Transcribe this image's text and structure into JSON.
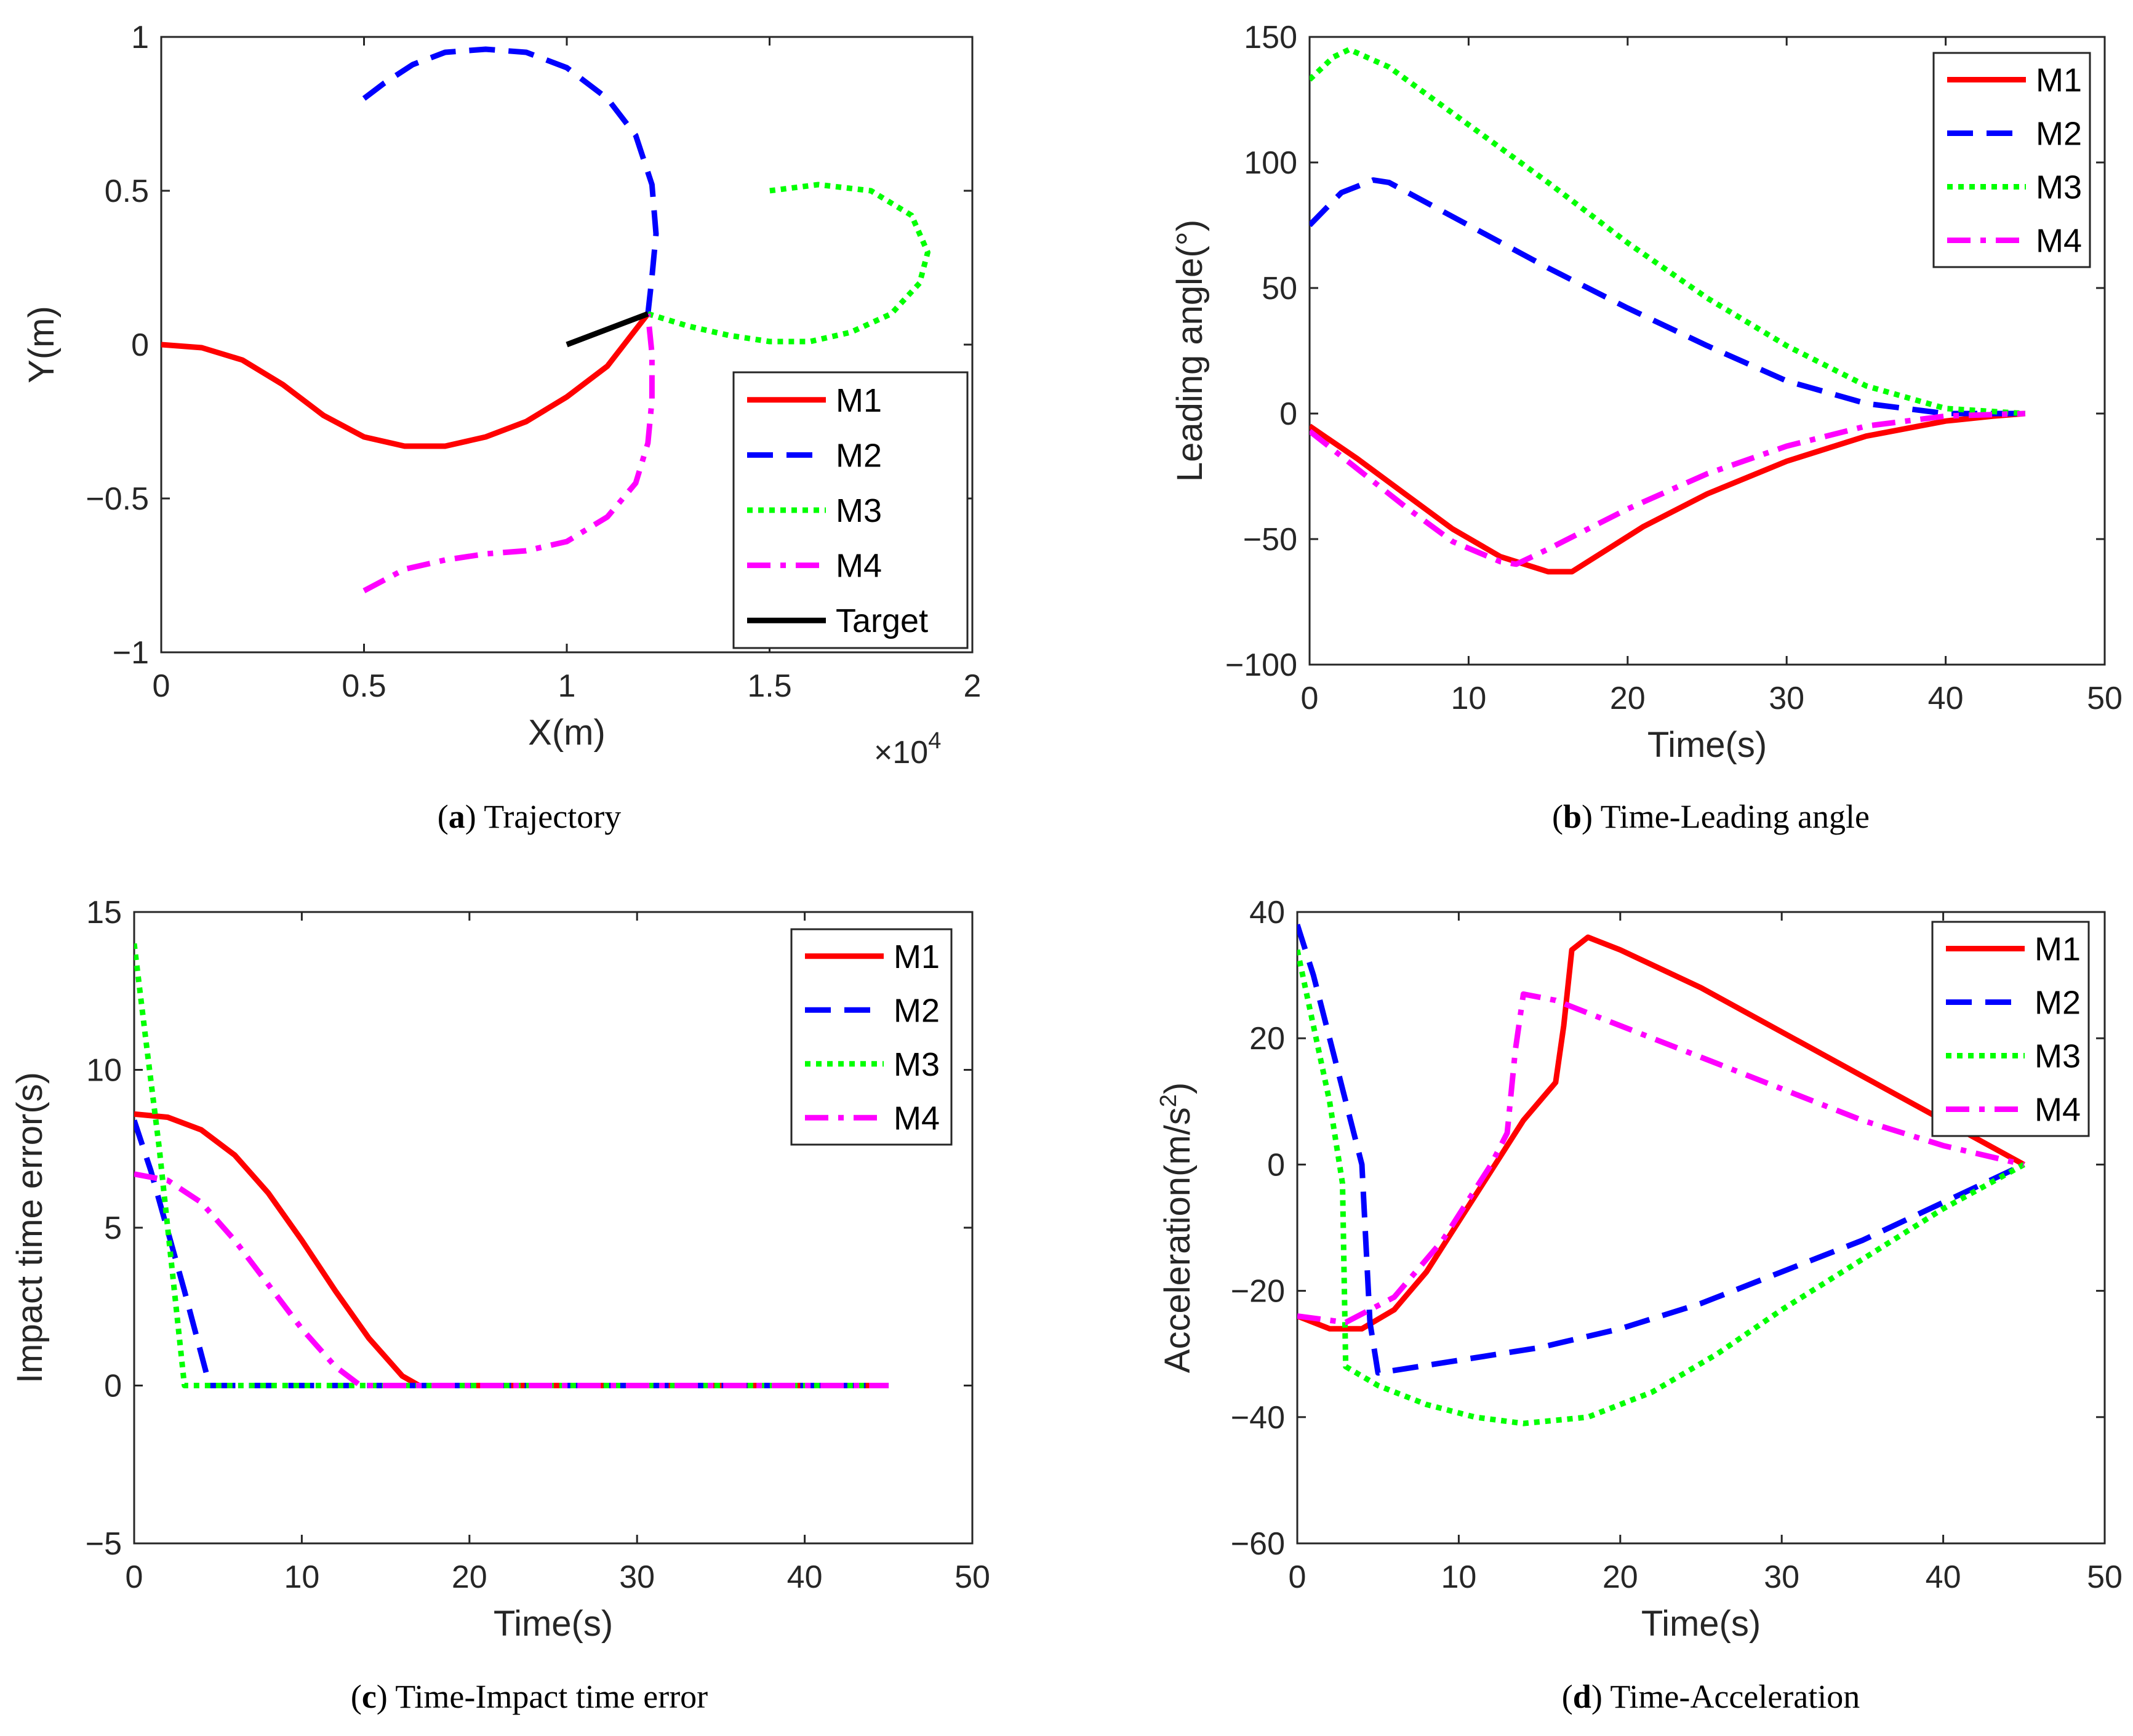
{
  "figure": {
    "background": "#ffffff",
    "axis_color": "#262626"
  },
  "chart_data": [
    {
      "id": "a",
      "type": "line",
      "caption_letter": "a",
      "caption_text": "Trajectory",
      "xlabel": "X(m)",
      "ylabel": "Y(m)",
      "xlim": [
        0,
        2
      ],
      "ylim": [
        -1,
        1
      ],
      "xticks": [
        0,
        0.5,
        1,
        1.5,
        2
      ],
      "xtick_labels": [
        "0",
        "0.5",
        "1",
        "1.5",
        "2"
      ],
      "yticks": [
        -1,
        -0.5,
        0,
        0.5,
        1
      ],
      "ytick_labels": [
        "−1",
        "−0.5",
        "0",
        "0.5",
        "1"
      ],
      "x_exponent_base": "×10",
      "x_exponent_power": "4",
      "grid": false,
      "legend_position": "bottom-right",
      "series": [
        {
          "name": "M1",
          "color": "#ff0000",
          "style": "solid",
          "x": [
            0,
            0.1,
            0.2,
            0.3,
            0.4,
            0.5,
            0.6,
            0.7,
            0.8,
            0.9,
            1.0,
            1.1,
            1.2
          ],
          "y": [
            0,
            -0.01,
            -0.05,
            -0.13,
            -0.23,
            -0.3,
            -0.33,
            -0.33,
            -0.3,
            -0.25,
            -0.17,
            -0.07,
            0.1
          ]
        },
        {
          "name": "M2",
          "color": "#0000ff",
          "style": "dashed",
          "x": [
            0.5,
            0.55,
            0.62,
            0.7,
            0.8,
            0.9,
            1.0,
            1.1,
            1.17,
            1.21,
            1.22,
            1.21,
            1.2
          ],
          "y": [
            0.8,
            0.85,
            0.91,
            0.95,
            0.96,
            0.95,
            0.9,
            0.8,
            0.68,
            0.52,
            0.36,
            0.22,
            0.1
          ]
        },
        {
          "name": "M3",
          "color": "#00ff00",
          "style": "dotted",
          "x": [
            1.2,
            1.3,
            1.4,
            1.5,
            1.6,
            1.7,
            1.8,
            1.87,
            1.89,
            1.85,
            1.75,
            1.62,
            1.5
          ],
          "y": [
            0.1,
            0.06,
            0.03,
            0.01,
            0.01,
            0.04,
            0.1,
            0.2,
            0.3,
            0.42,
            0.5,
            0.52,
            0.5
          ]
        },
        {
          "name": "M4",
          "color": "#ff00ff",
          "style": "dashdot",
          "x": [
            0.5,
            0.6,
            0.7,
            0.8,
            0.9,
            1.0,
            1.1,
            1.17,
            1.2,
            1.21,
            1.21,
            1.2
          ],
          "y": [
            -0.8,
            -0.73,
            -0.7,
            -0.68,
            -0.67,
            -0.64,
            -0.56,
            -0.45,
            -0.32,
            -0.18,
            -0.03,
            0.1
          ]
        },
        {
          "name": "Target",
          "color": "#000000",
          "style": "solid",
          "x": [
            1.0,
            1.2
          ],
          "y": [
            0.0,
            0.1
          ]
        }
      ]
    },
    {
      "id": "b",
      "type": "line",
      "caption_letter": "b",
      "caption_text": "Time-Leading angle",
      "xlabel": "Time(s)",
      "ylabel": "Leading angle(°)",
      "xlim": [
        0,
        50
      ],
      "ylim": [
        -100,
        150
      ],
      "xticks": [
        0,
        10,
        20,
        30,
        40,
        50
      ],
      "xtick_labels": [
        "0",
        "10",
        "20",
        "30",
        "40",
        "50"
      ],
      "yticks": [
        -100,
        -50,
        0,
        50,
        100,
        150
      ],
      "ytick_labels": [
        "−100",
        "−50",
        "0",
        "50",
        "100",
        "150"
      ],
      "grid": false,
      "legend_position": "top-right",
      "series": [
        {
          "name": "M1",
          "color": "#ff0000",
          "style": "solid",
          "x": [
            0,
            3,
            6,
            9,
            12,
            15,
            16.5,
            18,
            21,
            25,
            30,
            35,
            40,
            43,
            45
          ],
          "y": [
            -5,
            -18,
            -32,
            -46,
            -57,
            -63,
            -63,
            -57,
            -45,
            -32,
            -19,
            -9,
            -3,
            -1,
            0
          ]
        },
        {
          "name": "M2",
          "color": "#0000ff",
          "style": "dashed",
          "x": [
            0,
            2,
            4,
            5,
            10,
            15,
            20,
            25,
            30,
            35,
            40,
            45
          ],
          "y": [
            75,
            88,
            93,
            92,
            75,
            58,
            42,
            27,
            13,
            4,
            0,
            0
          ]
        },
        {
          "name": "M3",
          "color": "#00ff00",
          "style": "dotted",
          "x": [
            0,
            1.5,
            2.5,
            5,
            10,
            15,
            20,
            25,
            30,
            35,
            40,
            45
          ],
          "y": [
            133,
            142,
            145,
            138,
            115,
            92,
            68,
            46,
            27,
            11,
            2,
            0
          ]
        },
        {
          "name": "M4",
          "color": "#ff00ff",
          "style": "dashdot",
          "x": [
            0,
            3,
            6,
            9,
            12,
            13,
            15,
            20,
            25,
            30,
            35,
            40,
            45
          ],
          "y": [
            -7,
            -22,
            -37,
            -51,
            -59,
            -60,
            -54,
            -38,
            -24,
            -13,
            -5,
            -1,
            0
          ]
        }
      ]
    },
    {
      "id": "c",
      "type": "line",
      "caption_letter": "c",
      "caption_text": "Time-Impact time error",
      "xlabel": "Time(s)",
      "ylabel": "Impact time error(s)",
      "xlim": [
        0,
        50
      ],
      "ylim": [
        -5,
        15
      ],
      "xticks": [
        0,
        10,
        20,
        30,
        40,
        50
      ],
      "xtick_labels": [
        "0",
        "10",
        "20",
        "30",
        "40",
        "50"
      ],
      "yticks": [
        -5,
        0,
        5,
        10,
        15
      ],
      "ytick_labels": [
        "−5",
        "0",
        "5",
        "10",
        "15"
      ],
      "grid": false,
      "legend_position": "top-right",
      "series": [
        {
          "name": "M1",
          "color": "#ff0000",
          "style": "solid",
          "x": [
            0,
            2,
            4,
            6,
            8,
            10,
            12,
            14,
            16,
            17,
            45
          ],
          "y": [
            8.6,
            8.5,
            8.1,
            7.3,
            6.1,
            4.6,
            3.0,
            1.5,
            0.3,
            0,
            0
          ]
        },
        {
          "name": "M2",
          "color": "#0000ff",
          "style": "dashed",
          "x": [
            0,
            1,
            2,
            3,
            4,
            4.5,
            45
          ],
          "y": [
            8.4,
            6.8,
            4.9,
            3.0,
            1.0,
            0,
            0
          ]
        },
        {
          "name": "M3",
          "color": "#00ff00",
          "style": "dotted",
          "x": [
            0,
            0.8,
            1.5,
            2.2,
            3,
            45
          ],
          "y": [
            14,
            10.5,
            7.5,
            4,
            0,
            0
          ]
        },
        {
          "name": "M4",
          "color": "#ff00ff",
          "style": "dashdot",
          "x": [
            0,
            2,
            4,
            6,
            8,
            10,
            12,
            13.5,
            45
          ],
          "y": [
            6.7,
            6.5,
            5.8,
            4.6,
            3.2,
            1.8,
            0.6,
            0,
            0
          ]
        }
      ]
    },
    {
      "id": "d",
      "type": "line",
      "caption_letter": "d",
      "caption_text": "Time-Acceleration",
      "xlabel": "Time(s)",
      "ylabel": "Acceleration(m/s",
      "ylabel_sup": "2",
      "ylabel_end": ")",
      "xlim": [
        0,
        50
      ],
      "ylim": [
        -60,
        40
      ],
      "xticks": [
        0,
        10,
        20,
        30,
        40,
        50
      ],
      "xtick_labels": [
        "0",
        "10",
        "20",
        "30",
        "40",
        "50"
      ],
      "yticks": [
        -60,
        -40,
        -20,
        0,
        20,
        40
      ],
      "ytick_labels": [
        "−60",
        "−40",
        "−20",
        "0",
        "20",
        "40"
      ],
      "grid": false,
      "legend_position": "top-right",
      "series": [
        {
          "name": "M1",
          "color": "#ff0000",
          "style": "solid",
          "x": [
            0,
            2,
            4,
            6,
            8,
            10,
            12,
            14,
            16,
            16.5,
            17,
            18,
            20,
            25,
            30,
            35,
            40,
            45
          ],
          "y": [
            -24,
            -26,
            -26,
            -23,
            -17,
            -9,
            -1,
            7,
            13,
            22,
            34,
            36,
            34,
            28,
            21,
            14,
            7,
            0
          ]
        },
        {
          "name": "M2",
          "color": "#0000ff",
          "style": "dashed",
          "x": [
            0,
            1,
            2,
            3,
            4,
            4.5,
            5,
            10,
            15,
            20,
            25,
            30,
            35,
            40,
            45
          ],
          "y": [
            38,
            30,
            20,
            10,
            0,
            -25,
            -33,
            -31,
            -29,
            -26,
            -22,
            -17,
            -12,
            -6,
            0
          ]
        },
        {
          "name": "M3",
          "color": "#00ff00",
          "style": "dotted",
          "x": [
            0,
            1,
            2,
            2.8,
            3,
            5,
            8,
            11,
            14,
            18,
            22,
            26,
            30,
            35,
            40,
            45
          ],
          "y": [
            34,
            22,
            10,
            -3,
            -32,
            -35,
            -38,
            -40,
            -41,
            -40,
            -36,
            -30,
            -23,
            -15,
            -7,
            0
          ]
        },
        {
          "name": "M4",
          "color": "#ff00ff",
          "style": "dashdot",
          "x": [
            0,
            3,
            6,
            9,
            12,
            13,
            13.5,
            14,
            16,
            20,
            25,
            30,
            35,
            40,
            45
          ],
          "y": [
            -24,
            -25,
            -21,
            -12,
            0,
            5,
            18,
            27,
            26,
            22,
            17,
            12,
            7,
            3,
            0
          ]
        }
      ]
    }
  ]
}
